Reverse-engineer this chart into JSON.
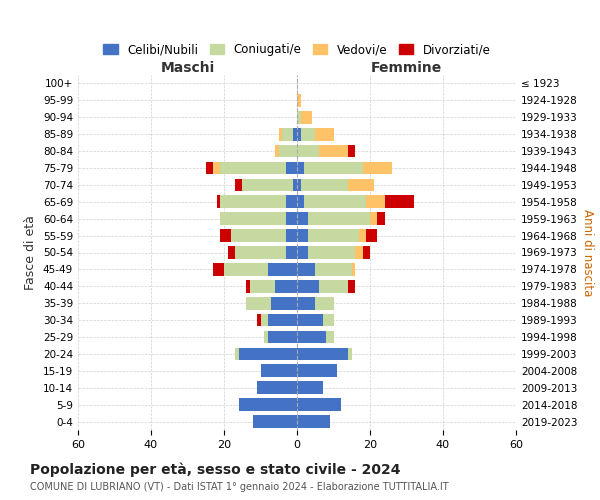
{
  "age_groups": [
    "0-4",
    "5-9",
    "10-14",
    "15-19",
    "20-24",
    "25-29",
    "30-34",
    "35-39",
    "40-44",
    "45-49",
    "50-54",
    "55-59",
    "60-64",
    "65-69",
    "70-74",
    "75-79",
    "80-84",
    "85-89",
    "90-94",
    "95-99",
    "100+"
  ],
  "birth_years": [
    "2019-2023",
    "2014-2018",
    "2009-2013",
    "2004-2008",
    "1999-2003",
    "1994-1998",
    "1989-1993",
    "1984-1988",
    "1979-1983",
    "1974-1978",
    "1969-1973",
    "1964-1968",
    "1959-1963",
    "1954-1958",
    "1949-1953",
    "1944-1948",
    "1939-1943",
    "1934-1938",
    "1929-1933",
    "1924-1928",
    "≤ 1923"
  ],
  "maschi": {
    "celibi": [
      12,
      16,
      11,
      10,
      16,
      8,
      8,
      7,
      6,
      8,
      3,
      3,
      3,
      3,
      1,
      3,
      0,
      1,
      0,
      0,
      0
    ],
    "coniugati": [
      0,
      0,
      0,
      0,
      1,
      1,
      2,
      7,
      7,
      12,
      14,
      15,
      18,
      18,
      14,
      18,
      5,
      3,
      0,
      0,
      0
    ],
    "vedovi": [
      0,
      0,
      0,
      0,
      0,
      0,
      0,
      0,
      0,
      0,
      0,
      0,
      0,
      0,
      0,
      2,
      1,
      1,
      0,
      0,
      0
    ],
    "divorziati": [
      0,
      0,
      0,
      0,
      0,
      0,
      1,
      0,
      1,
      3,
      2,
      3,
      0,
      1,
      2,
      2,
      0,
      0,
      0,
      0,
      0
    ]
  },
  "femmine": {
    "nubili": [
      9,
      12,
      7,
      11,
      14,
      8,
      7,
      5,
      6,
      5,
      3,
      3,
      3,
      2,
      1,
      2,
      0,
      1,
      0,
      0,
      0
    ],
    "coniugate": [
      0,
      0,
      0,
      0,
      1,
      2,
      3,
      5,
      8,
      10,
      13,
      14,
      17,
      17,
      13,
      16,
      6,
      4,
      1,
      0,
      0
    ],
    "vedove": [
      0,
      0,
      0,
      0,
      0,
      0,
      0,
      0,
      0,
      1,
      2,
      2,
      2,
      5,
      7,
      8,
      8,
      5,
      3,
      1,
      0
    ],
    "divorziate": [
      0,
      0,
      0,
      0,
      0,
      0,
      0,
      0,
      2,
      0,
      2,
      3,
      2,
      8,
      0,
      0,
      2,
      0,
      0,
      0,
      0
    ]
  },
  "colors": {
    "celibi": "#4472c4",
    "coniugati": "#c5d9a0",
    "vedovi": "#ffc266",
    "divorziati": "#cc0000"
  },
  "title": "Popolazione per età, sesso e stato civile - 2024",
  "subtitle": "COMUNE DI LUBRIANO (VT) - Dati ISTAT 1° gennaio 2024 - Elaborazione TUTTITALIA.IT",
  "xlabel_left": "Maschi",
  "xlabel_right": "Femmine",
  "ylabel_left": "Fasce di età",
  "ylabel_right": "Anni di nascita",
  "xlim": 60,
  "legend_labels": [
    "Celibi/Nubili",
    "Coniugati/e",
    "Vedovi/e",
    "Divorziati/e"
  ],
  "bg_color": "#ffffff",
  "grid_color": "#cccccc"
}
